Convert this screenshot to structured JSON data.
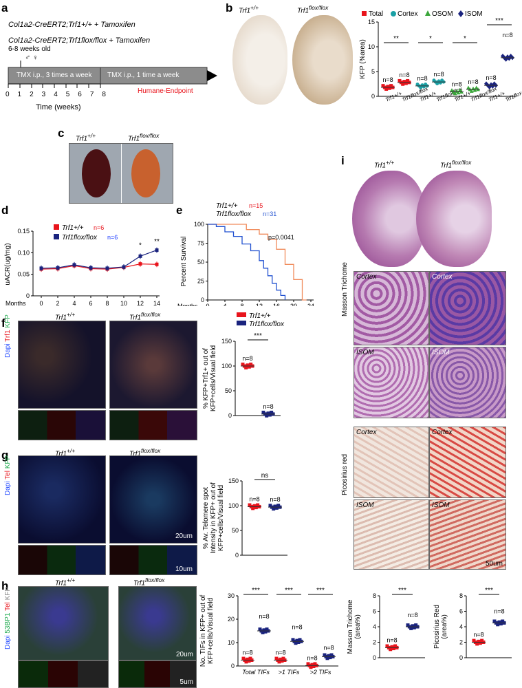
{
  "panels": {
    "a": "a",
    "b": "b",
    "c": "c",
    "d": "d",
    "e": "e",
    "f": "f",
    "g": "g",
    "h": "h",
    "i": "i"
  },
  "genotype": {
    "wt": "Trf1+/+",
    "ko": "Trf1flox/flox",
    "wt_base": "Trf1",
    "wt_sup": "+/+",
    "ko_base": "Trf1",
    "ko_sup": "flox/flox"
  },
  "a": {
    "line1": "Col1a2-CreERT2;Trf1+/+ + Tamoxifen",
    "line2": "Col1a2-CreERT2;Trf1flox/flox + Tamoxifen",
    "age": "6-8 weeks old",
    "sex": "♂ ♀",
    "phase1": "TMX i.p., 3 times a week",
    "phase2": "TMX i.p., 1 time a week",
    "endpoint": "Humane-Endpoint",
    "ticks": [
      "0",
      "1",
      "2",
      "3",
      "4",
      "5",
      "6",
      "7",
      "8"
    ],
    "xlabel": "Time (weeks)"
  },
  "b": {
    "legend": [
      "Total",
      "Cortex",
      "OSOM",
      "ISOM"
    ],
    "ylabel": "KFP (%area)",
    "sig": [
      "**",
      "*",
      "*",
      "***"
    ],
    "n": "n=8"
  },
  "d": {
    "ylabel": "uACR(ug/mg)",
    "xlabel": "Months",
    "n_wt": "n=6",
    "n_ko": "n=6",
    "sig": [
      "*",
      "**"
    ]
  },
  "e": {
    "ylabel": "Percent Survival",
    "xlabel": "Months",
    "n_wt": "n=15",
    "n_ko": "n=31",
    "p": "p=0.0041"
  },
  "f": {
    "stain": [
      "Dapi",
      "Trf1",
      "KFP"
    ],
    "ylabel1": "% KFP+Trf1+ out of",
    "ylabel2": "KFP+cells/Visual field",
    "sig": "***",
    "n": "n=8"
  },
  "g": {
    "stain": [
      "Dapi",
      "Tel",
      "KFP"
    ],
    "ylabel1": "% Av. Telomere spot",
    "ylabel2": "Intensity in KFP+ out of",
    "ylabel3": "KFP+cells/Visual field",
    "sig": "ns",
    "n": "n=8",
    "scale1": "20um",
    "scale2": "10um"
  },
  "h": {
    "stain": [
      "Dapi",
      "53BP1",
      "Tel",
      "KFP"
    ],
    "ylabel1": "No. TIFs in KFP+ out of",
    "ylabel2": "KFP+cells/Visual field",
    "cats": [
      "Total TIFs",
      ">1 TIFs",
      ">2 TIFs"
    ],
    "sig": [
      "***",
      "***",
      "***"
    ],
    "n": "n=8",
    "scale1": "20um",
    "scale2": "5um"
  },
  "i": {
    "region_cortex": "Cortex",
    "region_isom": "ISOM",
    "masson": "Masson Trichome",
    "picro": "Picosirius red",
    "scale": "50um",
    "ylabel_masson": [
      "Masson Trichome",
      "(area%)"
    ],
    "ylabel_picro": [
      "Picosirius Red",
      "(area%)"
    ],
    "sig": "***",
    "n": "n=8"
  },
  "chart_data": [
    {
      "panel": "b",
      "type": "scatter",
      "ylabel": "KFP (%area)",
      "ylim": [
        0,
        15
      ],
      "yticks": [
        0,
        5,
        10,
        15
      ],
      "categories": [
        "Total Trf1+/+",
        "Total Trf1flox/flox",
        "Cortex Trf1+/+",
        "Cortex Trf1flox/flox",
        "OSOM Trf1+/+",
        "OSOM Trf1flox/flox",
        "ISOM Trf1+/+",
        "ISOM Trf1flox/flox"
      ],
      "series": [
        {
          "name": "Total",
          "color": "#e8141c",
          "means": [
            1.8,
            2.8
          ]
        },
        {
          "name": "Cortex",
          "color": "#1aa0a5",
          "means": [
            2.1,
            2.9
          ]
        },
        {
          "name": "OSOM",
          "color": "#3aa63a",
          "means": [
            0.9,
            1.4
          ]
        },
        {
          "name": "ISOM",
          "color": "#1a237e",
          "means": [
            2.2,
            7.8
          ]
        }
      ]
    },
    {
      "panel": "d",
      "type": "line",
      "xlabel": "Months",
      "ylabel": "uACR(ug/mg)",
      "x": [
        0,
        2,
        4,
        6,
        8,
        10,
        12,
        14
      ],
      "ylim": [
        0,
        0.15
      ],
      "yticks": [
        0,
        0.05,
        0.1,
        0.15
      ],
      "series": [
        {
          "name": "Trf1+/+",
          "color": "#e8141c",
          "values": [
            0.062,
            0.063,
            0.07,
            0.063,
            0.062,
            0.066,
            0.074,
            0.073
          ]
        },
        {
          "name": "Trf1flox/flox",
          "color": "#1a237e",
          "values": [
            0.064,
            0.065,
            0.072,
            0.065,
            0.064,
            0.067,
            0.092,
            0.106
          ]
        }
      ]
    },
    {
      "panel": "e",
      "type": "line",
      "xlabel": "Months",
      "ylabel": "Percent Survival",
      "x_ticks": [
        0,
        4,
        8,
        12,
        16,
        20,
        24
      ],
      "ylim": [
        0,
        100
      ],
      "yticks": [
        0,
        25,
        50,
        75,
        100
      ]
    },
    {
      "panel": "f",
      "type": "scatter",
      "ylim": [
        0,
        150
      ],
      "yticks": [
        0,
        50,
        100,
        150
      ],
      "means": [
        100,
        3
      ]
    },
    {
      "panel": "g",
      "type": "scatter",
      "ylim": [
        0,
        150
      ],
      "yticks": [
        0,
        50,
        100,
        150
      ],
      "means": [
        98,
        97
      ]
    },
    {
      "panel": "h",
      "type": "scatter",
      "ylim": [
        0,
        30
      ],
      "yticks": [
        0,
        10,
        20,
        30
      ],
      "means": [
        2.5,
        15,
        2.5,
        10.5,
        0.2,
        4
      ]
    },
    {
      "panel": "i-masson",
      "type": "scatter",
      "ylim": [
        0,
        8
      ],
      "yticks": [
        0,
        2,
        4,
        6,
        8
      ],
      "means": [
        1.3,
        4
      ]
    },
    {
      "panel": "i-picro",
      "type": "scatter",
      "ylim": [
        0,
        8
      ],
      "yticks": [
        0,
        2,
        4,
        6,
        8
      ],
      "means": [
        2,
        4.5
      ]
    }
  ]
}
